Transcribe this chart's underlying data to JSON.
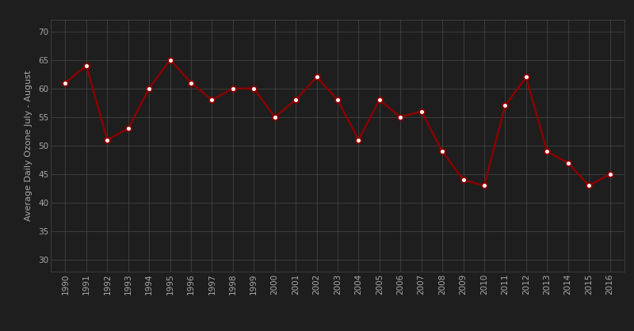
{
  "years": [
    1990,
    1991,
    1992,
    1993,
    1994,
    1995,
    1996,
    1997,
    1998,
    1999,
    2000,
    2001,
    2002,
    2003,
    2004,
    2005,
    2006,
    2007,
    2008,
    2009,
    2010,
    2011,
    2012,
    2013,
    2014,
    2015,
    2016
  ],
  "values": [
    61,
    64,
    51,
    53,
    60,
    65,
    61,
    58,
    60,
    60,
    55,
    58,
    62,
    58,
    51,
    58,
    55,
    56,
    49,
    44,
    43,
    57,
    62,
    49,
    47,
    43,
    45
  ],
  "line_color": "#8B0000",
  "marker_face": "#ffffff",
  "marker_edge": "#8B0000",
  "bg_color": "#1e1e1e",
  "plot_bg_color": "#1e1e1e",
  "grid_color": "#4a4a4a",
  "text_color": "#aaaaaa",
  "ylabel": "Average Daily Ozone July - August",
  "ylim": [
    28,
    72
  ],
  "yticks": [
    30,
    35,
    40,
    45,
    50,
    55,
    60,
    65,
    70
  ],
  "bottom_bar_color": "#8B0000",
  "line_width": 1.8,
  "marker_size": 5,
  "marker_edge_width": 1.4
}
